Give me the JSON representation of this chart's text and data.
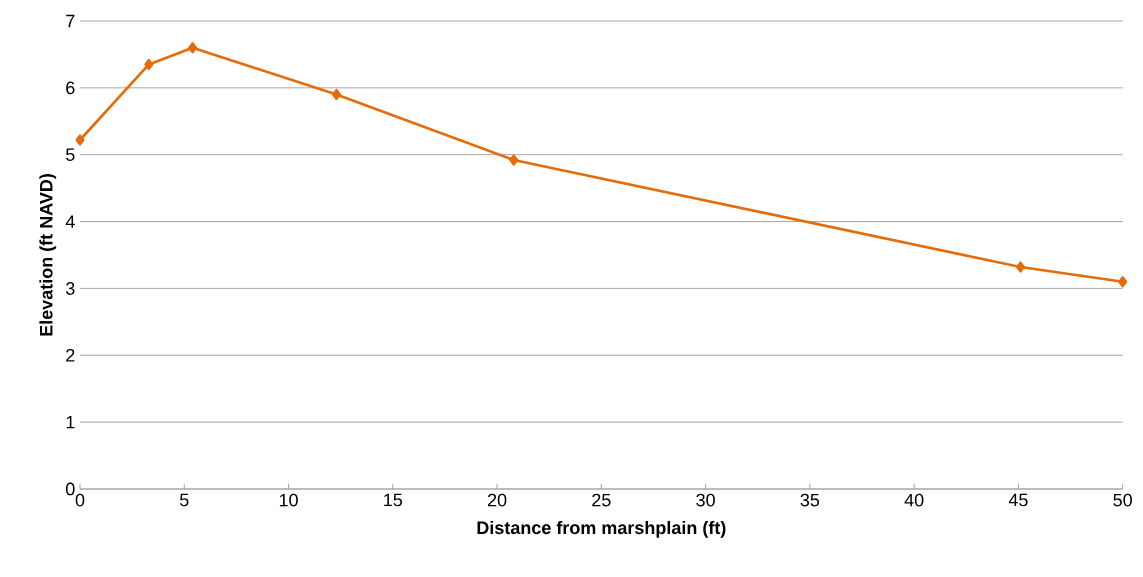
{
  "chart_data": {
    "type": "line",
    "xlabel": "Distance from marshplain (ft)",
    "ylabel": "Elevation (ft NAVD)",
    "x": [
      0,
      3.3,
      5.4,
      12.3,
      20.8,
      45.1,
      50
    ],
    "series": [
      {
        "color": "#e46c0a",
        "values": [
          5.22,
          6.35,
          6.6,
          5.9,
          4.92,
          3.32,
          3.1
        ]
      }
    ],
    "xlim": [
      0,
      50
    ],
    "ylim": [
      0,
      7
    ],
    "xticks": [
      0,
      5,
      10,
      15,
      20,
      25,
      30,
      35,
      40,
      45,
      50
    ],
    "yticks": [
      0,
      1,
      2,
      3,
      4,
      5,
      6,
      7
    ],
    "grid": "y",
    "marker": "diamond",
    "line_style": "solid"
  }
}
